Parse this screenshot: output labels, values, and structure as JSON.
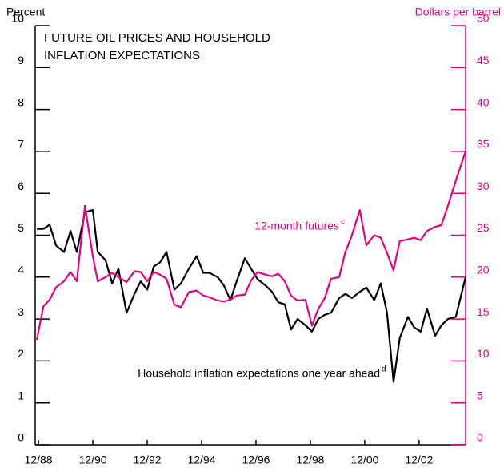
{
  "chart_data": {
    "type": "line",
    "title": [
      "FUTURE OIL PRICES AND HOUSEHOLD",
      "INFLATION  EXPECTATIONS"
    ],
    "y_label": "Percent",
    "y2_label": "Dollars per barrel",
    "x": [
      1988.86,
      1989.1,
      1989.33,
      1989.57,
      1989.86,
      1990.1,
      1990.33,
      1990.63,
      1990.92,
      1991.1,
      1991.39,
      1991.63,
      1991.86,
      1992.16,
      1992.45,
      1992.68,
      1992.92,
      1993.16,
      1993.39,
      1993.63,
      1993.92,
      1994.16,
      1994.45,
      1994.74,
      1994.98,
      1995.21,
      1995.51,
      1995.74,
      1995.98,
      1996.21,
      1996.51,
      1996.74,
      1996.98,
      1997.27,
      1997.51,
      1997.74,
      1997.98,
      1998.21,
      1998.45,
      1998.74,
      1998.98,
      1999.21,
      1999.45,
      1999.68,
      1999.98,
      2000.21,
      2000.45,
      2000.74,
      2000.98,
      2001.27,
      2001.51,
      2001.74,
      2001.98,
      2002.21,
      2002.51,
      2002.74,
      2002.98,
      2003.21,
      2003.51,
      2003.74,
      2003.98,
      2004.27,
      2004.63
    ],
    "series": [
      {
        "name": "Household inflation expectations one year ahead",
        "footnote": "d",
        "color": "#000000",
        "axis": "y",
        "values": [
          5.15,
          5.15,
          5.25,
          4.75,
          4.6,
          5.1,
          4.6,
          5.55,
          5.6,
          4.6,
          4.4,
          3.85,
          4.2,
          3.15,
          3.6,
          3.9,
          3.7,
          4.25,
          4.35,
          4.6,
          3.7,
          3.85,
          4.2,
          4.5,
          4.1,
          4.1,
          4.0,
          3.8,
          3.45,
          3.9,
          4.45,
          4.2,
          3.95,
          3.8,
          3.65,
          3.4,
          3.35,
          2.75,
          3.0,
          2.85,
          2.7,
          3.0,
          3.1,
          3.15,
          3.5,
          3.6,
          3.5,
          3.65,
          3.75,
          3.45,
          3.85,
          3.15,
          1.5,
          2.55,
          3.05,
          2.8,
          2.7,
          3.25,
          2.6,
          2.85,
          3.0,
          3.05,
          4.0
        ]
      },
      {
        "name": "12-month futures",
        "footnote": "c",
        "color": "#e6007e",
        "axis": "y2",
        "values": [
          12.5,
          16.5,
          17.3,
          18.8,
          19.5,
          20.6,
          19.5,
          28.5,
          22.5,
          19.5,
          20,
          20.5,
          20,
          19.4,
          20.7,
          20.6,
          19.5,
          20.6,
          20.3,
          19.8,
          16.7,
          16.4,
          18.2,
          18.4,
          17.8,
          17.6,
          17.2,
          17.1,
          17.3,
          17.8,
          17.9,
          19.6,
          20.6,
          20.3,
          20.1,
          20.4,
          19.5,
          17.8,
          17.2,
          17.3,
          14.2,
          16.2,
          17.5,
          19.8,
          20,
          23,
          25,
          28,
          23.8,
          25,
          24.7,
          22.9,
          20.8,
          24.3,
          24.5,
          24.7,
          24.4,
          25.5,
          26,
          26.2,
          28.5,
          31.5,
          35
        ]
      }
    ],
    "xlim": [
      1988.8,
      2004.63
    ],
    "xticks": [
      {
        "value": 1988.92,
        "label": "12/88"
      },
      {
        "value": 1990.92,
        "label": "12/90"
      },
      {
        "value": 1992.92,
        "label": "12/92"
      },
      {
        "value": 1994.92,
        "label": "12/94"
      },
      {
        "value": 1996.92,
        "label": "12/96"
      },
      {
        "value": 1998.92,
        "label": "12/98"
      },
      {
        "value": 2000.92,
        "label": "12/00"
      },
      {
        "value": 2002.92,
        "label": "12/02"
      }
    ],
    "ylim": [
      0,
      10
    ],
    "yticks": [
      0,
      1,
      2,
      3,
      4,
      5,
      6,
      7,
      8,
      9,
      10
    ],
    "y2lim": [
      0,
      50
    ],
    "y2ticks": [
      0,
      5,
      10,
      15,
      20,
      25,
      30,
      35,
      40,
      45,
      50
    ],
    "y2_color": "#e6007e"
  }
}
